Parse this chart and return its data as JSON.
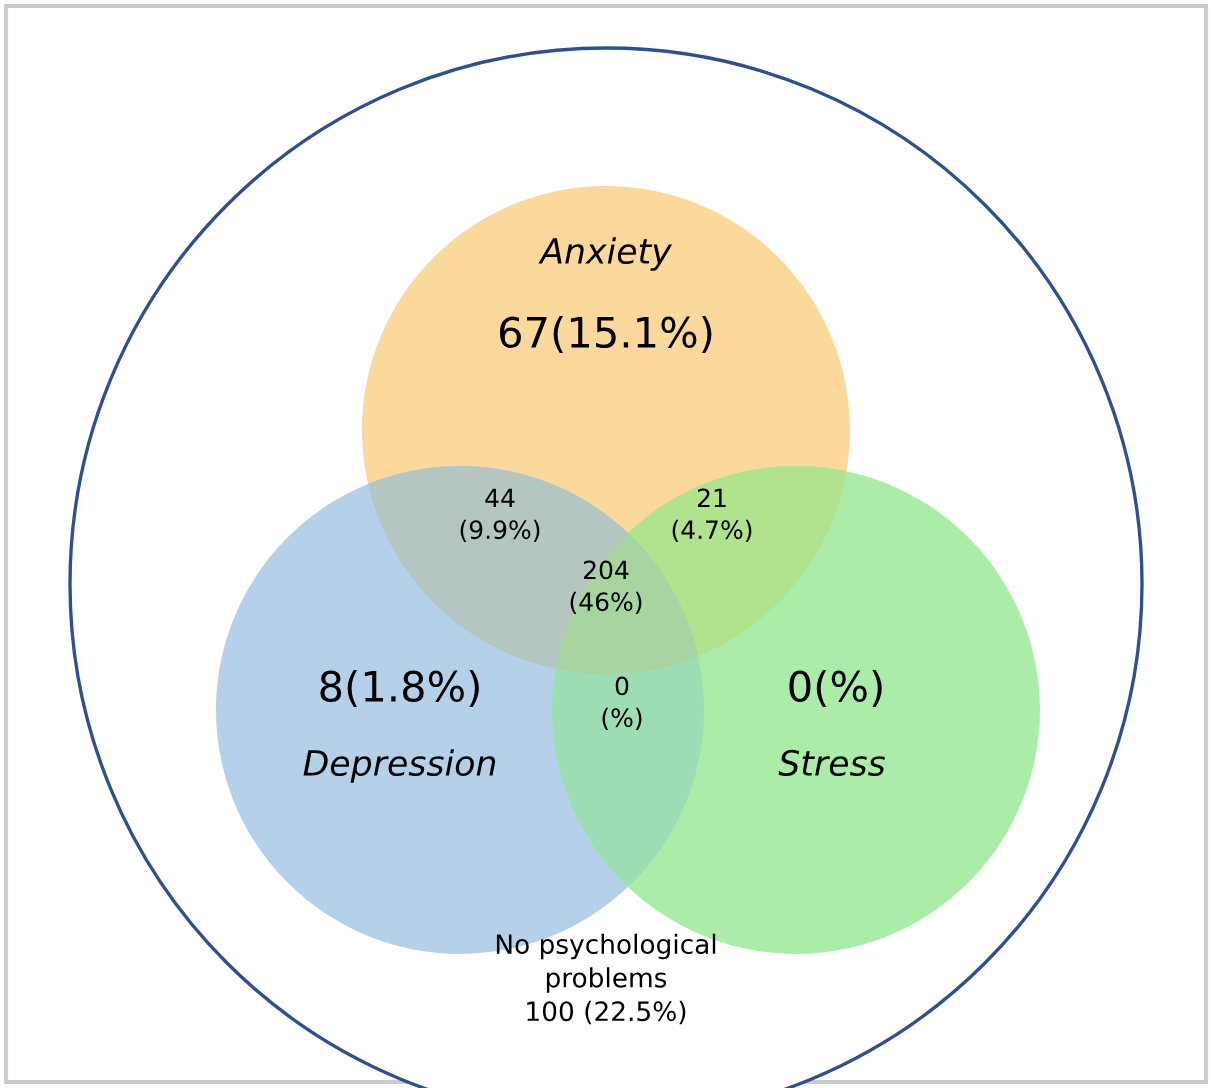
{
  "chart_data": {
    "type": "other",
    "annotations": [
      "Anxiety",
      "Depression",
      "Stress"
    ],
    "colors": [
      "#fbd89c",
      "#b5d1ea",
      "#abedA8",
      "#b5c6c2",
      "#b1e28e",
      "#a8d49f",
      "#9dddb3",
      "#ffffff"
    ],
    "categories": [
      null,
      null,
      null,
      null,
      null,
      null,
      null,
      null
    ],
    "values": [
      67,
      8,
      0,
      44,
      21,
      204,
      0,
      100
    ],
    "value_labels": [
      "67(15.1%)",
      "8(1.8%)",
      "0(%)",
      "44\n(9.9%)",
      "21\n(4.7%)",
      "204\n(46%)",
      "0\n(%)",
      "No psychological\nproblems\n100 (22.5%)"
    ]
  }
}
